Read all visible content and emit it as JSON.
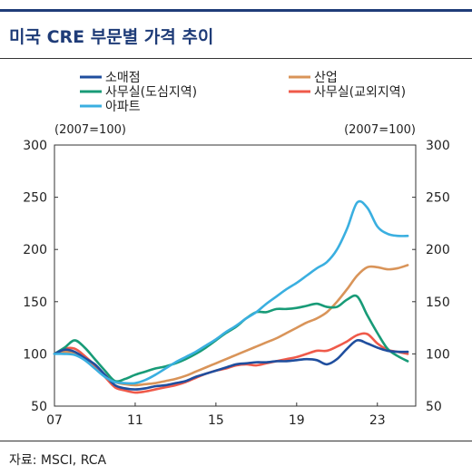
{
  "title": "미국 CRE 부문별 가격 추이",
  "source": "자료: MSCI, RCA",
  "chart_data": {
    "type": "line",
    "unit_left": "(2007=100)",
    "unit_right": "(2007=100)",
    "x_tick_labels": [
      "07",
      "11",
      "15",
      "19",
      "23"
    ],
    "x_tick_values": [
      2007,
      2011,
      2015,
      2019,
      2023
    ],
    "xlim": [
      2007,
      2024.9
    ],
    "ylim": [
      50,
      300
    ],
    "y_ticks": [
      50,
      100,
      150,
      200,
      250,
      300
    ],
    "grid": false,
    "legend_position": "top",
    "series": [
      {
        "name": "소매점",
        "color": "#1f4e9e",
        "x": [
          2007,
          2007.5,
          2008,
          2008.5,
          2009,
          2009.5,
          2010,
          2010.5,
          2011,
          2011.5,
          2012,
          2012.5,
          2013,
          2013.5,
          2014,
          2014.5,
          2015,
          2015.5,
          2016,
          2016.5,
          2017,
          2017.5,
          2018,
          2018.5,
          2019,
          2019.5,
          2020,
          2020.5,
          2021,
          2021.5,
          2022,
          2022.5,
          2023,
          2023.5,
          2024,
          2024.5
        ],
        "values": [
          100,
          104,
          102,
          96,
          90,
          80,
          70,
          67,
          66,
          67,
          69,
          70,
          72,
          74,
          78,
          81,
          84,
          87,
          90,
          91,
          92,
          92,
          93,
          93,
          94,
          95,
          94,
          90,
          95,
          105,
          113,
          110,
          106,
          103,
          102,
          102
        ]
      },
      {
        "name": "산업",
        "color": "#d99459",
        "x": [
          2007,
          2007.5,
          2008,
          2008.5,
          2009,
          2009.5,
          2010,
          2010.5,
          2011,
          2011.5,
          2012,
          2012.5,
          2013,
          2013.5,
          2014,
          2014.5,
          2015,
          2015.5,
          2016,
          2016.5,
          2017,
          2017.5,
          2018,
          2018.5,
          2019,
          2019.5,
          2020,
          2020.5,
          2021,
          2021.5,
          2022,
          2022.5,
          2023,
          2023.5,
          2024,
          2024.5
        ],
        "values": [
          100,
          102,
          101,
          96,
          88,
          80,
          73,
          71,
          70,
          71,
          72,
          74,
          76,
          79,
          83,
          87,
          91,
          95,
          99,
          103,
          107,
          111,
          115,
          120,
          125,
          130,
          134,
          140,
          150,
          162,
          175,
          183,
          183,
          181,
          182,
          185
        ]
      },
      {
        "name": "사무실(도심지역)",
        "color": "#189b77",
        "x": [
          2007,
          2007.5,
          2008,
          2008.5,
          2009,
          2009.5,
          2010,
          2010.5,
          2011,
          2011.5,
          2012,
          2012.5,
          2013,
          2013.5,
          2014,
          2014.5,
          2015,
          2015.5,
          2016,
          2016.5,
          2017,
          2017.5,
          2018,
          2018.5,
          2019,
          2019.5,
          2020,
          2020.5,
          2021,
          2021.5,
          2022,
          2022.5,
          2023,
          2023.5,
          2024,
          2024.5
        ],
        "values": [
          100,
          106,
          113,
          106,
          95,
          84,
          74,
          76,
          80,
          83,
          86,
          88,
          91,
          95,
          100,
          106,
          113,
          120,
          126,
          134,
          140,
          140,
          143,
          143,
          144,
          146,
          148,
          145,
          145,
          152,
          155,
          137,
          120,
          105,
          98,
          93
        ]
      },
      {
        "name": "사무실(교외지역)",
        "color": "#ef5a4a",
        "x": [
          2007,
          2007.5,
          2008,
          2008.5,
          2009,
          2009.5,
          2010,
          2010.5,
          2011,
          2011.5,
          2012,
          2012.5,
          2013,
          2013.5,
          2014,
          2014.5,
          2015,
          2015.5,
          2016,
          2016.5,
          2017,
          2017.5,
          2018,
          2018.5,
          2019,
          2019.5,
          2020,
          2020.5,
          2021,
          2021.5,
          2022,
          2022.5,
          2023,
          2023.5,
          2024,
          2024.5
        ],
        "values": [
          100,
          105,
          105,
          98,
          89,
          78,
          68,
          65,
          63,
          64,
          66,
          68,
          70,
          73,
          77,
          81,
          84,
          86,
          89,
          90,
          89,
          91,
          93,
          95,
          97,
          100,
          103,
          103,
          107,
          112,
          118,
          119,
          110,
          104,
          102,
          100
        ]
      },
      {
        "name": "아파트",
        "color": "#3aafe0",
        "x": [
          2007,
          2007.5,
          2008,
          2008.5,
          2009,
          2009.5,
          2010,
          2010.5,
          2011,
          2011.5,
          2012,
          2012.5,
          2013,
          2013.5,
          2014,
          2014.5,
          2015,
          2015.5,
          2016,
          2016.5,
          2017,
          2017.5,
          2018,
          2018.5,
          2019,
          2019.5,
          2020,
          2020.5,
          2021,
          2021.5,
          2022,
          2022.5,
          2023,
          2023.5,
          2024,
          2024.5
        ],
        "values": [
          100,
          100,
          99,
          94,
          86,
          78,
          73,
          72,
          72,
          75,
          80,
          86,
          92,
          97,
          102,
          108,
          114,
          121,
          127,
          134,
          140,
          148,
          155,
          162,
          168,
          175,
          182,
          188,
          200,
          220,
          245,
          240,
          222,
          215,
          213,
          213
        ]
      }
    ]
  }
}
